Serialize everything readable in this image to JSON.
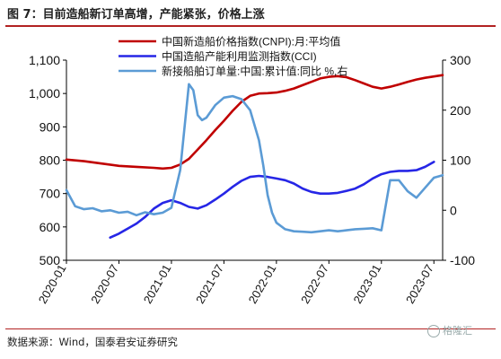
{
  "header": {
    "title": "图 7：目前造船新订单高增，产能紧张，价格上涨"
  },
  "footer": {
    "source": "数据来源：Wind，国泰君安证券研究",
    "watermark": "格隆汇"
  },
  "chart_data": {
    "type": "line",
    "x_labels": [
      "2020-01",
      "2020-07",
      "2021-01",
      "2021-07",
      "2022-01",
      "2022-07",
      "2023-01",
      "2023-07"
    ],
    "x_months": [
      0,
      6,
      12,
      18,
      24,
      30,
      36,
      42
    ],
    "x_range": [
      0,
      43
    ],
    "left_axis": {
      "ticks": [
        500,
        600,
        700,
        800,
        900,
        1000,
        1100
      ],
      "tick_labels": [
        "500",
        "600",
        "700",
        "800",
        "900",
        "1,000",
        "1,100"
      ],
      "ylim": [
        500,
        1100
      ]
    },
    "right_axis": {
      "ticks": [
        -100,
        0,
        100,
        200,
        300
      ],
      "tick_labels": [
        "-100",
        "0",
        "100",
        "200",
        "300"
      ],
      "ylim": [
        -100,
        300
      ]
    },
    "legend_position": "top",
    "series": [
      {
        "name": "中国新造船价格指数(CNPI):月:平均值",
        "axis": "left",
        "color": "#c00000",
        "months": [
          0,
          2,
          4,
          6,
          8,
          10,
          11,
          12,
          13,
          14,
          15,
          16,
          17,
          18,
          19,
          20,
          21,
          22,
          23,
          24,
          25,
          26,
          27,
          28,
          29,
          30,
          31,
          32,
          33,
          34,
          35,
          36,
          37,
          38,
          39,
          40,
          41,
          42,
          43
        ],
        "values": [
          802,
          797,
          790,
          783,
          780,
          777,
          775,
          777,
          787,
          804,
          832,
          860,
          890,
          918,
          948,
          975,
          993,
          1000,
          1001,
          1003,
          1008,
          1015,
          1025,
          1035,
          1045,
          1050,
          1052,
          1049,
          1040,
          1030,
          1020,
          1015,
          1020,
          1027,
          1035,
          1042,
          1047,
          1051,
          1055
        ]
      },
      {
        "name": "中国造船产能利用监测指数(CCI)",
        "axis": "left",
        "color": "#2626e6",
        "months": [
          5,
          6,
          7,
          8,
          9,
          10,
          11,
          12,
          13,
          14,
          15,
          16,
          17,
          18,
          19,
          20,
          21,
          22,
          23,
          24,
          25,
          26,
          27,
          28,
          29,
          30,
          31,
          32,
          33,
          34,
          35,
          36,
          37,
          38,
          39,
          40,
          41,
          42
        ],
        "values": [
          568,
          580,
          595,
          610,
          630,
          655,
          672,
          680,
          672,
          660,
          655,
          665,
          682,
          700,
          720,
          738,
          750,
          753,
          750,
          745,
          740,
          730,
          715,
          705,
          700,
          700,
          702,
          708,
          715,
          728,
          745,
          758,
          765,
          768,
          768,
          770,
          780,
          795
        ]
      },
      {
        "name": "新接船舶订单量:中国:累计值:同比 %,右",
        "axis": "right",
        "color": "#5b9bd5",
        "months": [
          0,
          1,
          2,
          3,
          4,
          5,
          6,
          7,
          8,
          9,
          10,
          11,
          12,
          13,
          14,
          14.5,
          15,
          15.5,
          16,
          17,
          18,
          19,
          20,
          21,
          22,
          22.5,
          23,
          23.5,
          24,
          25,
          26,
          27,
          28,
          29,
          30,
          31,
          32,
          33,
          34,
          35,
          36,
          37,
          38,
          39,
          40,
          41,
          42,
          43
        ],
        "values": [
          40,
          8,
          2,
          4,
          -2,
          0,
          -5,
          -3,
          -10,
          -4,
          -8,
          -5,
          5,
          80,
          252,
          240,
          190,
          180,
          185,
          210,
          225,
          228,
          222,
          200,
          140,
          90,
          30,
          -5,
          -25,
          -38,
          -42,
          -43,
          -44,
          -42,
          -40,
          -42,
          -40,
          -38,
          -37,
          -36,
          -40,
          60,
          60,
          38,
          25,
          45,
          65,
          70
        ]
      }
    ]
  }
}
